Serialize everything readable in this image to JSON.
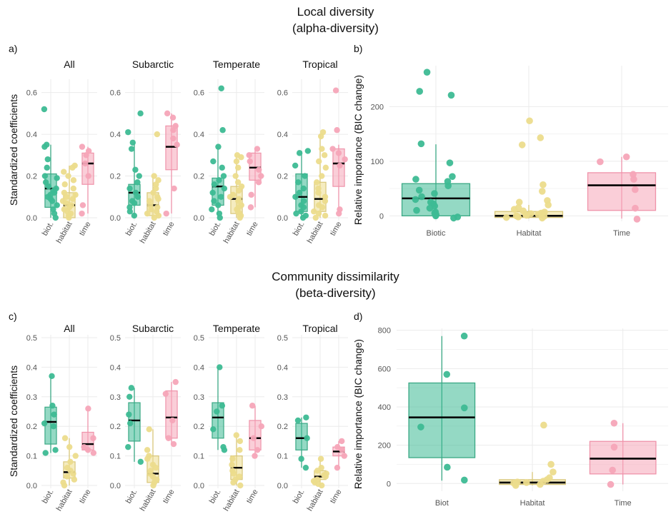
{
  "figure": {
    "title_top": [
      "Local diversity",
      "(alpha-diversity)"
    ],
    "title_bottom": [
      "Community dissimilarity",
      "(beta-diversity)"
    ],
    "panel_labels": [
      "a)",
      "b)",
      "c)",
      "d)"
    ]
  },
  "colors": {
    "biotic": "#3dba93",
    "habitat": "#ecdc8c",
    "time": "#f6a5b8",
    "median": "#000000",
    "grid": "#ebebeb"
  },
  "chart_data": [
    {
      "id": "a",
      "type": "boxplot",
      "ylabel": "Standardized coefficients",
      "ylim": [
        0,
        0.65
      ],
      "yticks": [
        0.0,
        0.2,
        0.4,
        0.6
      ],
      "categories": [
        "biot.",
        "habitat",
        "time"
      ],
      "facets": [
        {
          "title": "All",
          "boxes": [
            {
              "q1": 0.05,
              "median": 0.14,
              "q3": 0.21,
              "lower": 0.0,
              "upper": 0.35,
              "points": [
                0.52,
                0.35,
                0.34,
                0.28,
                0.24,
                0.2,
                0.19,
                0.17,
                0.15,
                0.14,
                0.13,
                0.12,
                0.11,
                0.1,
                0.09,
                0.08,
                0.06,
                0.04,
                0.02,
                0.0
              ]
            },
            {
              "q1": 0.0,
              "median": 0.06,
              "q3": 0.12,
              "lower": 0.0,
              "upper": 0.25,
              "points": [
                0.25,
                0.24,
                0.22,
                0.2,
                0.18,
                0.16,
                0.14,
                0.12,
                0.11,
                0.1,
                0.09,
                0.08,
                0.07,
                0.06,
                0.05,
                0.04,
                0.03,
                0.02,
                0.01,
                0.0
              ]
            },
            {
              "q1": 0.16,
              "median": 0.26,
              "q3": 0.31,
              "lower": 0.02,
              "upper": 0.34,
              "points": [
                0.34,
                0.32,
                0.3,
                0.26,
                0.2,
                0.06,
                0.02
              ]
            }
          ]
        },
        {
          "title": "Subarctic",
          "boxes": [
            {
              "q1": 0.06,
              "median": 0.12,
              "q3": 0.16,
              "lower": 0.0,
              "upper": 0.36,
              "points": [
                0.5,
                0.41,
                0.36,
                0.33,
                0.23,
                0.2,
                0.17,
                0.14,
                0.12,
                0.1,
                0.08,
                0.07,
                0.05,
                0.03,
                0.01
              ]
            },
            {
              "q1": 0.01,
              "median": 0.06,
              "q3": 0.12,
              "lower": 0.0,
              "upper": 0.2,
              "points": [
                0.4,
                0.2,
                0.18,
                0.16,
                0.14,
                0.12,
                0.1,
                0.09,
                0.08,
                0.06,
                0.05,
                0.04,
                0.03,
                0.02,
                0.01,
                0.0
              ]
            },
            {
              "q1": 0.23,
              "median": 0.34,
              "q3": 0.44,
              "lower": 0.02,
              "upper": 0.5,
              "points": [
                0.5,
                0.48,
                0.44,
                0.42,
                0.38,
                0.35,
                0.14,
                0.02
              ]
            }
          ]
        },
        {
          "title": "Temperate",
          "boxes": [
            {
              "q1": 0.06,
              "median": 0.15,
              "q3": 0.19,
              "lower": 0.0,
              "upper": 0.34,
              "points": [
                0.62,
                0.42,
                0.34,
                0.27,
                0.24,
                0.2,
                0.18,
                0.16,
                0.14,
                0.12,
                0.1,
                0.08,
                0.06,
                0.04,
                0.02,
                0.0
              ]
            },
            {
              "q1": 0.02,
              "median": 0.09,
              "q3": 0.15,
              "lower": 0.0,
              "upper": 0.3,
              "points": [
                0.3,
                0.29,
                0.27,
                0.24,
                0.2,
                0.17,
                0.15,
                0.13,
                0.11,
                0.1,
                0.09,
                0.08,
                0.06,
                0.05,
                0.04,
                0.03,
                0.02,
                0.01,
                0.0
              ]
            },
            {
              "q1": 0.18,
              "median": 0.24,
              "q3": 0.31,
              "lower": 0.05,
              "upper": 0.33,
              "points": [
                0.33,
                0.3,
                0.27,
                0.23,
                0.2,
                0.17,
                0.11,
                0.05
              ]
            }
          ]
        },
        {
          "title": "Tropical",
          "boxes": [
            {
              "q1": 0.03,
              "median": 0.1,
              "q3": 0.21,
              "lower": 0.0,
              "upper": 0.32,
              "points": [
                0.32,
                0.31,
                0.25,
                0.2,
                0.17,
                0.14,
                0.12,
                0.1,
                0.08,
                0.06,
                0.05,
                0.03,
                0.02,
                0.01,
                0.0
              ]
            },
            {
              "q1": 0.03,
              "median": 0.09,
              "q3": 0.17,
              "lower": 0.0,
              "upper": 0.4,
              "points": [
                0.41,
                0.39,
                0.33,
                0.3,
                0.27,
                0.24,
                0.2,
                0.17,
                0.14,
                0.12,
                0.1,
                0.08,
                0.06,
                0.05,
                0.03,
                0.02,
                0.01,
                0.0
              ]
            },
            {
              "q1": 0.15,
              "median": 0.26,
              "q3": 0.33,
              "lower": 0.03,
              "upper": 0.35,
              "points": [
                0.61,
                0.42,
                0.33,
                0.31,
                0.28,
                0.25,
                0.04,
                0.02
              ]
            }
          ]
        }
      ]
    },
    {
      "id": "b",
      "type": "boxplot",
      "ylabel": "Relative importance (BIC change)",
      "ylim": [
        -10,
        275
      ],
      "yticks": [
        0,
        100,
        200
      ],
      "categories": [
        "Biotic",
        "Habitat",
        "Time"
      ],
      "boxes": [
        {
          "q1": 0,
          "median": 32,
          "q3": 59,
          "lower": -5,
          "upper": 131,
          "points": [
            263,
            228,
            221,
            132,
            97,
            72,
            67,
            63,
            55,
            47,
            41,
            35,
            30,
            25,
            22,
            18,
            14,
            10,
            7,
            5,
            2,
            0,
            -2,
            -4
          ]
        },
        {
          "q1": -3,
          "median": 0,
          "q3": 8,
          "lower": -5,
          "upper": 20,
          "points": [
            174,
            143,
            130,
            57,
            45,
            28,
            25,
            20,
            15,
            12,
            9,
            7,
            5,
            4,
            3,
            2,
            1,
            0,
            -1,
            -2,
            -3,
            -4
          ]
        },
        {
          "q1": 10,
          "median": 56,
          "q3": 79,
          "lower": -5,
          "upper": 108,
          "points": [
            108,
            99,
            76,
            67,
            48,
            14,
            -6
          ]
        }
      ]
    },
    {
      "id": "c",
      "type": "boxplot",
      "ylabel": "Standardized coefficients",
      "ylim": [
        0,
        0.5
      ],
      "yticks": [
        0.0,
        0.1,
        0.2,
        0.3,
        0.4,
        0.5
      ],
      "categories": [
        "biot.",
        "habitat",
        "time"
      ],
      "facets": [
        {
          "title": "All",
          "boxes": [
            {
              "q1": 0.14,
              "median": 0.215,
              "q3": 0.265,
              "lower": 0.11,
              "upper": 0.37,
              "points": [
                0.37,
                0.27,
                0.24,
                0.21,
                0.2,
                0.12,
                0.11
              ]
            },
            {
              "q1": 0.025,
              "median": 0.045,
              "q3": 0.08,
              "lower": 0.0,
              "upper": 0.16,
              "points": [
                0.16,
                0.13,
                0.1,
                0.08,
                0.06,
                0.05,
                0.04,
                0.03,
                0.02,
                0.01,
                0.0
              ]
            },
            {
              "q1": 0.12,
              "median": 0.14,
              "q3": 0.18,
              "lower": 0.11,
              "upper": 0.26,
              "points": [
                0.26,
                0.16,
                0.13,
                0.12,
                0.11
              ]
            }
          ]
        },
        {
          "title": "Subarctic",
          "boxes": [
            {
              "q1": 0.15,
              "median": 0.22,
              "q3": 0.28,
              "lower": 0.08,
              "upper": 0.33,
              "points": [
                0.33,
                0.3,
                0.24,
                0.21,
                0.13,
                0.08
              ]
            },
            {
              "q1": 0.01,
              "median": 0.04,
              "q3": 0.1,
              "lower": 0.0,
              "upper": 0.19,
              "points": [
                0.19,
                0.12,
                0.1,
                0.09,
                0.07,
                0.06,
                0.05,
                0.04,
                0.03,
                0.02,
                0.01,
                0.0
              ]
            },
            {
              "q1": 0.16,
              "median": 0.23,
              "q3": 0.32,
              "lower": 0.14,
              "upper": 0.35,
              "points": [
                0.35,
                0.31,
                0.22,
                0.16,
                0.14
              ]
            }
          ]
        },
        {
          "title": "Temperate",
          "boxes": [
            {
              "q1": 0.16,
              "median": 0.23,
              "q3": 0.28,
              "lower": 0.12,
              "upper": 0.4,
              "points": [
                0.4,
                0.27,
                0.25,
                0.19,
                0.13,
                0.12
              ]
            },
            {
              "q1": 0.02,
              "median": 0.06,
              "q3": 0.1,
              "lower": 0.0,
              "upper": 0.17,
              "points": [
                0.17,
                0.15,
                0.12,
                0.09,
                0.07,
                0.05,
                0.04,
                0.03,
                0.02,
                0.01,
                0.0
              ]
            },
            {
              "q1": 0.12,
              "median": 0.16,
              "q3": 0.22,
              "lower": 0.1,
              "upper": 0.27,
              "points": [
                0.27,
                0.2,
                0.16,
                0.12,
                0.1
              ]
            }
          ]
        },
        {
          "title": "Tropical",
          "boxes": [
            {
              "q1": 0.12,
              "median": 0.16,
              "q3": 0.21,
              "lower": 0.06,
              "upper": 0.23,
              "points": [
                0.23,
                0.22,
                0.16,
                0.09,
                0.06
              ]
            },
            {
              "q1": 0.02,
              "median": 0.03,
              "q3": 0.05,
              "lower": 0.0,
              "upper": 0.09,
              "points": [
                0.09,
                0.06,
                0.05,
                0.04,
                0.035,
                0.03,
                0.02,
                0.015,
                0.01,
                0.005,
                0.0
              ]
            },
            {
              "q1": 0.1,
              "median": 0.115,
              "q3": 0.13,
              "lower": 0.06,
              "upper": 0.15,
              "points": [
                0.15,
                0.13,
                0.12,
                0.1,
                0.06
              ]
            }
          ]
        }
      ]
    },
    {
      "id": "d",
      "type": "boxplot",
      "ylabel": "Relative importance (BIC change)",
      "ylim": [
        -40,
        810
      ],
      "yticks": [
        0,
        200,
        400,
        600,
        800
      ],
      "categories": [
        "Biot",
        "Habitat",
        "Time"
      ],
      "boxes": [
        {
          "q1": 135,
          "median": 345,
          "q3": 525,
          "lower": 15,
          "upper": 770,
          "points": [
            770,
            570,
            395,
            295,
            85,
            18
          ]
        },
        {
          "q1": -5,
          "median": 5,
          "q3": 20,
          "lower": -10,
          "upper": 60,
          "points": [
            305,
            100,
            60,
            30,
            20,
            12,
            8,
            5,
            2,
            0,
            -5,
            -10
          ]
        },
        {
          "q1": 50,
          "median": 130,
          "q3": 220,
          "lower": -5,
          "upper": 315,
          "points": [
            315,
            190,
            70,
            -5
          ]
        }
      ]
    }
  ]
}
